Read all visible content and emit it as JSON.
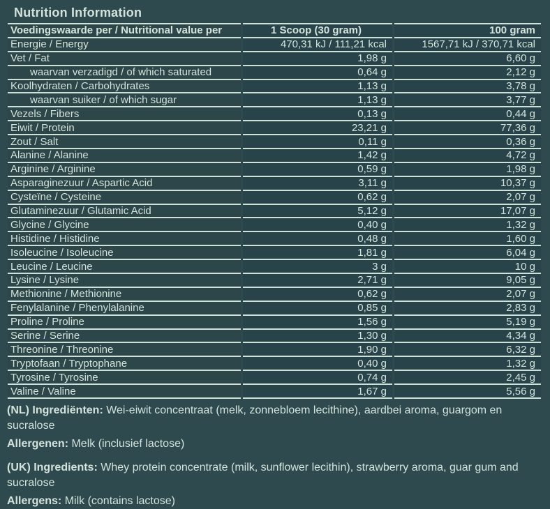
{
  "title": "Nutrition Information",
  "colors": {
    "page_background": "#2e4a4e",
    "label_cell_background": "#2c4649",
    "value_cell_background": "#29434a",
    "text": "#d3e3db",
    "border": "#cfe2da"
  },
  "table": {
    "header": {
      "label": "Voedingswaarde per / Nutritional value per",
      "scoop": "1 Scoop (30 gram)",
      "per100": "100 gram"
    },
    "rows": [
      {
        "label": "Energie / Energy",
        "scoop": "470,31 kJ / 111,21 kcal",
        "per100": "1567,71 kJ / 370,71 kcal",
        "indent": false
      },
      {
        "label": "Vet / Fat",
        "scoop": "1,98 g",
        "per100": "6,60 g",
        "indent": false
      },
      {
        "label": "waarvan verzadigd / of which saturated",
        "scoop": "0,64 g",
        "per100": "2,12 g",
        "indent": true
      },
      {
        "label": "Koolhydraten / Carbohydrates",
        "scoop": "1,13 g",
        "per100": "3,78 g",
        "indent": false
      },
      {
        "label": "waarvan suiker / of which sugar",
        "scoop": "1,13 g",
        "per100": "3,77 g",
        "indent": true
      },
      {
        "label": "Vezels / Fibers",
        "scoop": "0,13 g",
        "per100": "0,44 g",
        "indent": false
      },
      {
        "label": "Eiwit / Protein",
        "scoop": "23,21 g",
        "per100": "77,36 g",
        "indent": false
      },
      {
        "label": "Zout / Salt",
        "scoop": "0,11 g",
        "per100": "0,36 g",
        "indent": false
      },
      {
        "label": "Alanine / Alanine",
        "scoop": "1,42 g",
        "per100": "4,72 g",
        "indent": false
      },
      {
        "label": "Arginine / Arginine",
        "scoop": "0,59 g",
        "per100": "1,98 g",
        "indent": false
      },
      {
        "label": "Asparaginezuur / Aspartic Acid",
        "scoop": "3,11 g",
        "per100": "10,37 g",
        "indent": false
      },
      {
        "label": "Cysteïne / Cysteine",
        "scoop": "0,62 g",
        "per100": "2,07 g",
        "indent": false
      },
      {
        "label": "Glutaminezuur / Glutamic Acid",
        "scoop": "5,12 g",
        "per100": "17,07 g",
        "indent": false
      },
      {
        "label": "Glycine / Glycine",
        "scoop": "0,40 g",
        "per100": "1,32 g",
        "indent": false
      },
      {
        "label": "Histidine / Histidine",
        "scoop": "0,48 g",
        "per100": "1,60 g",
        "indent": false
      },
      {
        "label": "Isoleucine / Isoleucine",
        "scoop": "1,81 g",
        "per100": "6,04 g",
        "indent": false
      },
      {
        "label": "Leucine / Leucine",
        "scoop": "3 g",
        "per100": "10 g",
        "indent": false
      },
      {
        "label": "Lysine / Lysine",
        "scoop": "2,71 g",
        "per100": "9,05 g",
        "indent": false
      },
      {
        "label": "Methionine / Methionine",
        "scoop": "0,62 g",
        "per100": "2,07 g",
        "indent": false
      },
      {
        "label": "Fenylalanine / Phenylalanine",
        "scoop": "0,85 g",
        "per100": "2,83 g",
        "indent": false
      },
      {
        "label": "Proline / Proline",
        "scoop": "1,56 g",
        "per100": "5,19 g",
        "indent": false
      },
      {
        "label": "Serine / Serine",
        "scoop": "1,30 g",
        "per100": "4,34 g",
        "indent": false
      },
      {
        "label": "Threonine / Threonine",
        "scoop": "1,90 g",
        "per100": "6,32 g",
        "indent": false
      },
      {
        "label": "Tryptofaan / Tryptophane",
        "scoop": "0,40 g",
        "per100": "1,32 g",
        "indent": false
      },
      {
        "label": "Tyrosine / Tyrosine",
        "scoop": "0,74 g",
        "per100": "2,45 g",
        "indent": false
      },
      {
        "label": "Valine / Valine",
        "scoop": "1,67 g",
        "per100": "5,56 g",
        "indent": false
      }
    ]
  },
  "footer": {
    "nl": {
      "ingredients_label": "(NL) Ingrediënten:",
      "ingredients_text": " Wei-eiwit concentraat (melk, zonnebloem lecithine), aardbei aroma, guargom en sucralose",
      "allergens_label": "Allergenen:",
      "allergens_text": " Melk (inclusief lactose)"
    },
    "uk": {
      "ingredients_label": "(UK) Ingredients:",
      "ingredients_text": " Whey protein concentrate (milk, sunflower lecithin), strawberry aroma, guar gum and sucralose",
      "allergens_label": "Allergens:",
      "allergens_text": " Milk (contains lactose)"
    }
  }
}
